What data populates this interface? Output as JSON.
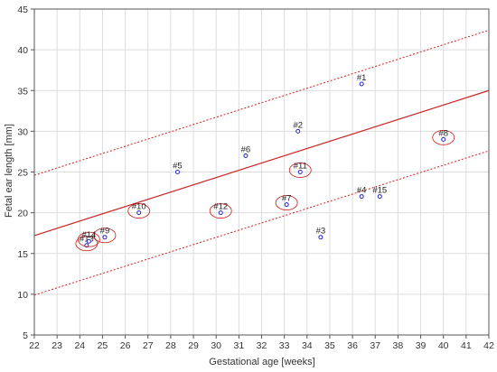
{
  "chart_data": {
    "type": "scatter",
    "xlabel": "Gestational age [weeks]",
    "ylabel": "Fetal ear length [mm]",
    "xlim": [
      22,
      42
    ],
    "ylim": [
      5,
      45
    ],
    "xticks": [
      22,
      23,
      24,
      25,
      26,
      27,
      28,
      29,
      30,
      31,
      32,
      33,
      34,
      35,
      36,
      37,
      38,
      39,
      40,
      41,
      42
    ],
    "yticks": [
      5,
      10,
      15,
      20,
      25,
      30,
      35,
      40,
      45
    ],
    "grid": true,
    "points": [
      {
        "label": "#1",
        "x": 36.4,
        "y": 35.8,
        "circled": false
      },
      {
        "label": "#2",
        "x": 33.6,
        "y": 30.0,
        "circled": false
      },
      {
        "label": "#3",
        "x": 34.6,
        "y": 17.0,
        "circled": false
      },
      {
        "label": "#4",
        "x": 36.4,
        "y": 22.0,
        "circled": false
      },
      {
        "label": "#5",
        "x": 28.3,
        "y": 25.0,
        "circled": false
      },
      {
        "label": "#6",
        "x": 31.3,
        "y": 27.0,
        "circled": false
      },
      {
        "label": "#7",
        "x": 33.1,
        "y": 21.0,
        "circled": true
      },
      {
        "label": "#8",
        "x": 40.0,
        "y": 29.0,
        "circled": true
      },
      {
        "label": "#9",
        "x": 25.1,
        "y": 17.0,
        "circled": true
      },
      {
        "label": "#10",
        "x": 26.6,
        "y": 20.0,
        "circled": true
      },
      {
        "label": "#11",
        "x": 33.7,
        "y": 25.0,
        "circled": true
      },
      {
        "label": "#12",
        "x": 30.2,
        "y": 20.0,
        "circled": true
      },
      {
        "label": "#13",
        "x": 24.3,
        "y": 16.0,
        "circled": true
      },
      {
        "label": "#14",
        "x": 24.4,
        "y": 16.5,
        "circled": true
      },
      {
        "label": "#15",
        "x": 37.2,
        "y": 22.0,
        "circled": false
      }
    ],
    "regression": {
      "x": [
        22,
        42
      ],
      "y": [
        17.2,
        35.0
      ]
    },
    "bounds": [
      {
        "x": [
          22,
          42
        ],
        "y": [
          24.6,
          42.4
        ]
      },
      {
        "x": [
          22,
          42
        ],
        "y": [
          9.9,
          27.6
        ]
      }
    ],
    "colors": {
      "regression": "#cc2222",
      "bounds": "#cc2222",
      "points": "#2222cc",
      "highlight": "#cc3333",
      "grid": "#dddddd",
      "axis": "#555555"
    }
  }
}
